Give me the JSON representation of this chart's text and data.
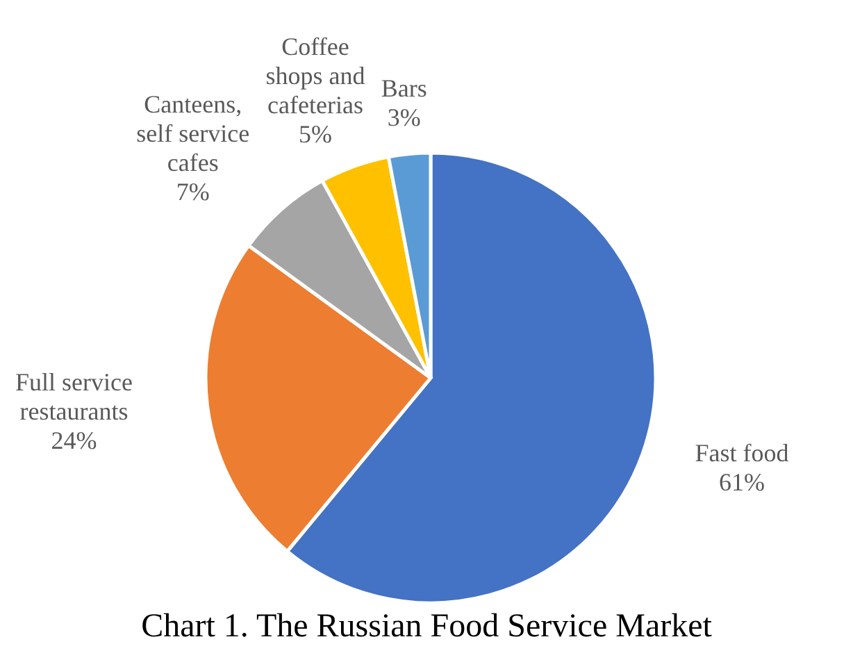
{
  "chart_data": {
    "type": "pie",
    "title": "Chart 1. The Russian Food Service Market",
    "categories": [
      "Fast food",
      "Full service restaurants",
      "Canteens, self service cafes",
      "Coffee shops and cafeterias",
      "Bars"
    ],
    "values": [
      61,
      24,
      7,
      5,
      3
    ],
    "colors": [
      "#4472c4",
      "#ed7d31",
      "#a5a5a5",
      "#ffc000",
      "#5b9bd5"
    ],
    "value_labels": [
      "61%",
      "24%",
      "7%",
      "5%",
      "3%"
    ]
  }
}
